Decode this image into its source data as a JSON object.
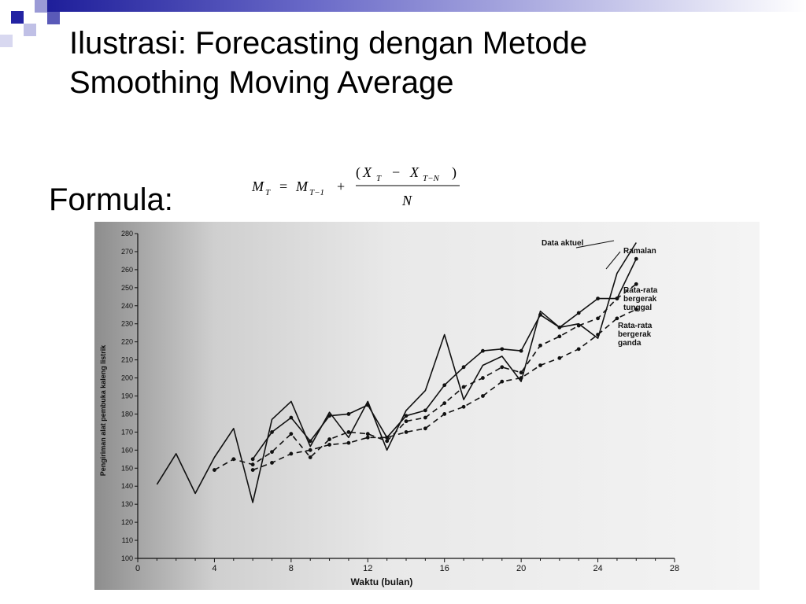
{
  "slide": {
    "title_line1": "Ilustrasi: Forecasting dengan Metode",
    "title_line2": "Smoothing Moving Average",
    "formula_label": "Formula:"
  },
  "formula": {
    "lhs": "M",
    "lhs_sub": "T",
    "eq": "=",
    "m2": "M",
    "m2_sub": "T−1",
    "plus": "+",
    "num_open": "(",
    "x1": "X",
    "x1_sub": "T",
    "minus": "−",
    "x2": "X",
    "x2_sub": "T−N",
    "num_close": ")",
    "den": "N"
  },
  "chart_data": {
    "type": "line",
    "xlabel": "Waktu (bulan)",
    "ylabel": "Pengiriman alat pembuka kaleng listrik",
    "xlim": [
      0,
      28
    ],
    "ylim": [
      100,
      280
    ],
    "xticks": [
      0,
      4,
      8,
      12,
      16,
      20,
      24,
      28
    ],
    "yticks": [
      100,
      110,
      120,
      130,
      140,
      150,
      160,
      170,
      180,
      190,
      200,
      210,
      220,
      230,
      240,
      250,
      260,
      270,
      280
    ],
    "series": [
      {
        "name": "Data aktuel",
        "style": "solid",
        "marker": "none",
        "x": [
          1,
          2,
          3,
          4,
          5,
          6,
          7,
          8,
          9,
          10,
          11,
          12,
          13,
          14,
          15,
          16,
          17,
          18,
          19,
          20,
          21,
          22,
          23,
          24,
          25,
          26
        ],
        "y": [
          141,
          158,
          136,
          156,
          172,
          131,
          177,
          187,
          162,
          181,
          167,
          187,
          160,
          182,
          193,
          224,
          188,
          207,
          212,
          198,
          237,
          228,
          230,
          222,
          258,
          275
        ]
      },
      {
        "name": "Ramalan",
        "style": "solid",
        "marker": "dot",
        "x": [
          6,
          7,
          8,
          9,
          10,
          11,
          12,
          13,
          14,
          15,
          16,
          17,
          18,
          19,
          20,
          21,
          22,
          23,
          24,
          25,
          26
        ],
        "y": [
          155,
          170,
          178,
          165,
          179,
          180,
          185,
          167,
          179,
          182,
          196,
          206,
          215,
          216,
          215,
          235,
          228,
          236,
          244,
          244,
          266
        ]
      },
      {
        "name": "Rata-rata bergerak tunggal",
        "style": "dashed",
        "marker": "dot",
        "x": [
          4,
          5,
          6,
          7,
          8,
          9,
          10,
          11,
          12,
          13,
          14,
          15,
          16,
          17,
          18,
          19,
          20,
          21,
          22,
          23,
          24,
          25,
          26
        ],
        "y": [
          149,
          155,
          152,
          159,
          169,
          156,
          166,
          170,
          169,
          165,
          176,
          178,
          186,
          195,
          200,
          206,
          203,
          218,
          223,
          229,
          233,
          244,
          252
        ]
      },
      {
        "name": "Rata-rata bergerak ganda",
        "style": "dashed",
        "marker": "dot",
        "x": [
          6,
          7,
          8,
          9,
          10,
          11,
          12,
          13,
          14,
          15,
          16,
          17,
          18,
          19,
          20,
          21,
          22,
          23,
          24,
          25,
          26
        ],
        "y": [
          149,
          153,
          158,
          160,
          163,
          164,
          167,
          167,
          170,
          172,
          180,
          184,
          190,
          198,
          200,
          207,
          211,
          216,
          224,
          233,
          238
        ]
      }
    ],
    "legend": [
      "Data aktuel",
      "Ramalan",
      "Rata-rata bergerak tunggal",
      "Rata-rata bergerak ganda"
    ]
  }
}
